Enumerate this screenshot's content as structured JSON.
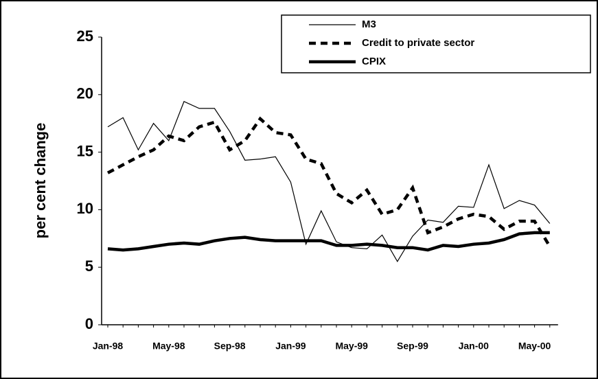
{
  "chart_data": {
    "type": "line",
    "y_label": "per cent change",
    "categories": [
      "Jan-98",
      null,
      null,
      null,
      "May-98",
      null,
      null,
      null,
      "Sep-98",
      null,
      null,
      null,
      "Jan-99",
      null,
      null,
      null,
      "May-99",
      null,
      null,
      null,
      "Sep-99",
      null,
      null,
      null,
      "Jan-00",
      null,
      null,
      null,
      "May-00",
      null
    ],
    "series": [
      {
        "name": "M3",
        "color": "#000000",
        "style": "thin",
        "values": [
          17.2,
          18.0,
          15.2,
          17.5,
          16.0,
          19.4,
          18.8,
          18.8,
          16.8,
          14.3,
          14.4,
          14.6,
          12.4,
          7.0,
          9.9,
          7.2,
          6.7,
          6.6,
          7.8,
          5.5,
          7.7,
          9.1,
          8.9,
          10.3,
          10.2,
          13.9,
          10.1,
          10.8,
          10.4,
          8.8
        ]
      },
      {
        "name": "Credit to private sector",
        "color": "#000000",
        "style": "dashed",
        "values": [
          13.2,
          13.9,
          14.6,
          15.2,
          16.4,
          16.0,
          17.2,
          17.6,
          15.2,
          16.0,
          17.9,
          16.7,
          16.5,
          14.4,
          14.0,
          11.4,
          10.6,
          11.7,
          9.6,
          10.0,
          11.9,
          8.0,
          8.5,
          9.2,
          9.6,
          9.4,
          8.3,
          9.0,
          9.0,
          6.8
        ]
      },
      {
        "name": "CPIX",
        "color": "#000000",
        "style": "thick",
        "values": [
          6.6,
          6.5,
          6.6,
          6.8,
          7.0,
          7.1,
          7.0,
          7.3,
          7.5,
          7.6,
          7.4,
          7.3,
          7.3,
          7.3,
          7.3,
          6.9,
          6.9,
          7.0,
          6.9,
          6.7,
          6.7,
          6.5,
          6.9,
          6.8,
          7.0,
          7.1,
          7.4,
          7.9,
          8.0,
          8.0
        ]
      }
    ],
    "ylim": [
      0,
      25
    ],
    "yticks": [
      0,
      5,
      10,
      15,
      20,
      25
    ],
    "grid": false,
    "legend": "top right"
  }
}
